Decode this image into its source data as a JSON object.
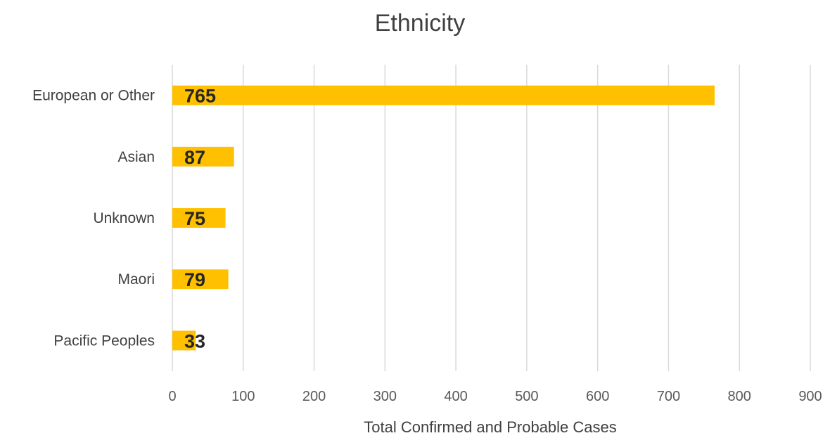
{
  "chart_data": {
    "type": "bar",
    "orientation": "horizontal",
    "title": "Ethnicity",
    "xlabel": "Total Confirmed and Probable Cases",
    "ylabel": "",
    "categories": [
      "European or Other",
      "Asian",
      "Unknown",
      "Maori",
      "Pacific Peoples"
    ],
    "values": [
      765,
      87,
      75,
      79,
      33
    ],
    "data_labels": [
      "765",
      "87",
      "75",
      "79",
      "33"
    ],
    "xlim": [
      0,
      900
    ],
    "xticks": [
      "0",
      "100",
      "200",
      "300",
      "400",
      "500",
      "600",
      "700",
      "800",
      "900"
    ],
    "grid": true,
    "legend": "none",
    "bar_color": "#FFC000"
  }
}
